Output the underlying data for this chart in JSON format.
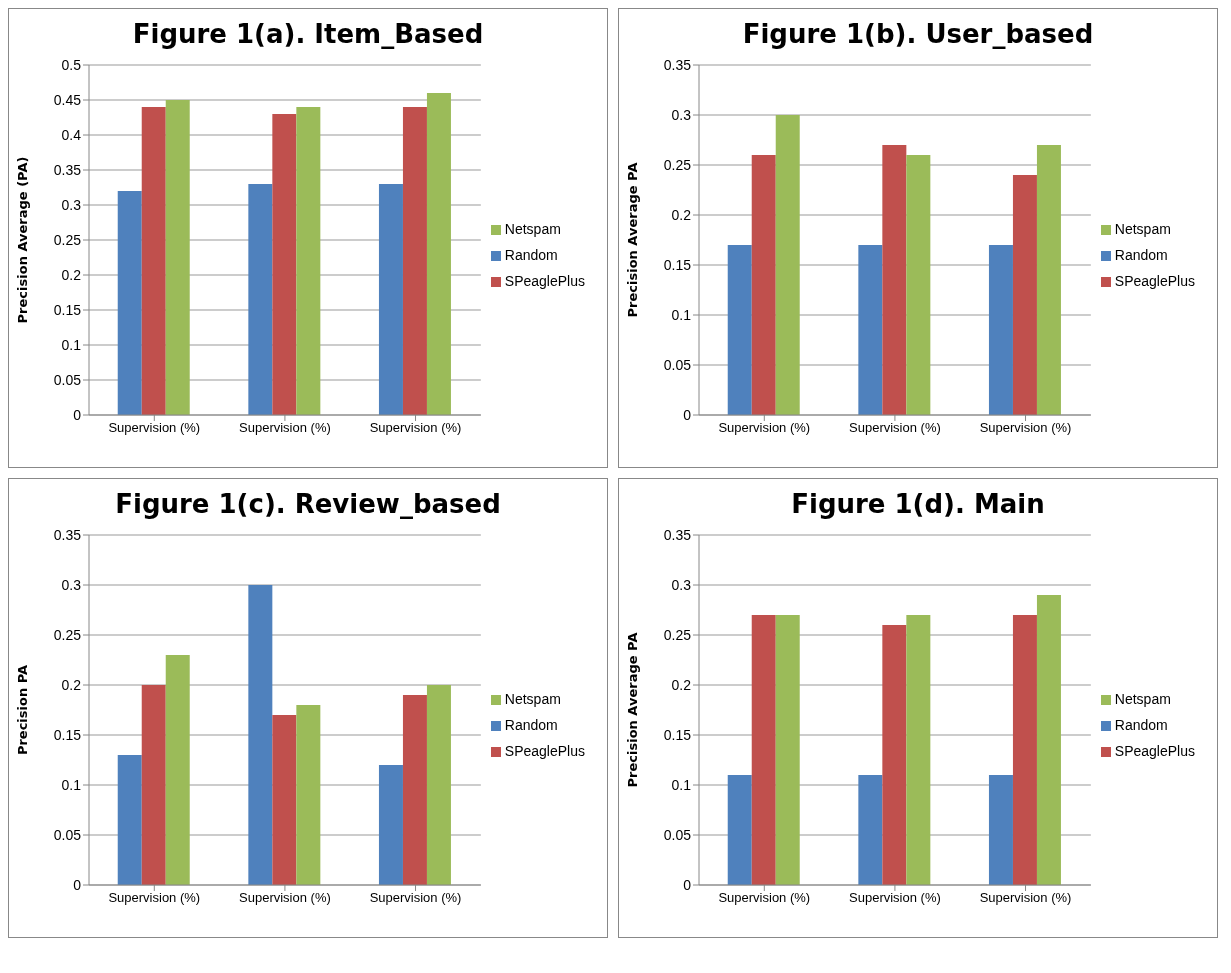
{
  "chart_data": [
    {
      "type": "bar",
      "title": "Figure 1(a). Item_Based",
      "ylabel": "Precision Average (PA)",
      "categories": [
        "Supervision (%)",
        "Supervision (%)",
        "Supervision (%)"
      ],
      "series": [
        {
          "name": "Random",
          "color": "#4f81bd",
          "values": [
            0.32,
            0.33,
            0.33
          ]
        },
        {
          "name": "SPeaglePlus",
          "color": "#c0504d",
          "values": [
            0.44,
            0.43,
            0.44
          ]
        },
        {
          "name": "Netspam",
          "color": "#9bbb59",
          "values": [
            0.45,
            0.44,
            0.46
          ]
        }
      ],
      "ylim": [
        0,
        0.5
      ],
      "yticks": [
        0,
        0.05,
        0.1,
        0.15,
        0.2,
        0.25,
        0.3,
        0.35,
        0.4,
        0.45,
        0.5
      ],
      "grid": "y",
      "legend": "right"
    },
    {
      "type": "bar",
      "title": "Figure 1(b). User_based",
      "ylabel": "Precision Average PA",
      "categories": [
        "Supervision (%)",
        "Supervision (%)",
        "Supervision (%)"
      ],
      "series": [
        {
          "name": "Random",
          "color": "#4f81bd",
          "values": [
            0.17,
            0.17,
            0.17
          ]
        },
        {
          "name": "SPeaglePlus",
          "color": "#c0504d",
          "values": [
            0.26,
            0.27,
            0.24
          ]
        },
        {
          "name": "Netspam",
          "color": "#9bbb59",
          "values": [
            0.3,
            0.26,
            0.27
          ]
        }
      ],
      "ylim": [
        0,
        0.35
      ],
      "yticks": [
        0,
        0.05,
        0.1,
        0.15,
        0.2,
        0.25,
        0.3,
        0.35
      ],
      "grid": "y",
      "legend": "right"
    },
    {
      "type": "bar",
      "title": "Figure 1(c). Review_based",
      "ylabel": "Precision PA",
      "categories": [
        "Supervision (%)",
        "Supervision (%)",
        "Supervision (%)"
      ],
      "series": [
        {
          "name": "Random",
          "color": "#4f81bd",
          "values": [
            0.13,
            0.3,
            0.12
          ]
        },
        {
          "name": "SPeaglePlus",
          "color": "#c0504d",
          "values": [
            0.2,
            0.17,
            0.19
          ]
        },
        {
          "name": "Netspam",
          "color": "#9bbb59",
          "values": [
            0.23,
            0.18,
            0.2
          ]
        }
      ],
      "ylim": [
        0,
        0.35
      ],
      "yticks": [
        0,
        0.05,
        0.1,
        0.15,
        0.2,
        0.25,
        0.3,
        0.35
      ],
      "grid": "y",
      "legend": "right"
    },
    {
      "type": "bar",
      "title": "Figure 1(d). Main",
      "ylabel": "Precision Average PA",
      "categories": [
        "Supervision (%)",
        "Supervision (%)",
        "Supervision (%)"
      ],
      "series": [
        {
          "name": "Random",
          "color": "#4f81bd",
          "values": [
            0.11,
            0.11,
            0.11
          ]
        },
        {
          "name": "SPeaglePlus",
          "color": "#c0504d",
          "values": [
            0.27,
            0.26,
            0.27
          ]
        },
        {
          "name": "Netspam",
          "color": "#9bbb59",
          "values": [
            0.27,
            0.27,
            0.29
          ]
        }
      ],
      "ylim": [
        0,
        0.35
      ],
      "yticks": [
        0,
        0.05,
        0.1,
        0.15,
        0.2,
        0.25,
        0.3,
        0.35
      ],
      "grid": "y",
      "legend": "right"
    }
  ]
}
